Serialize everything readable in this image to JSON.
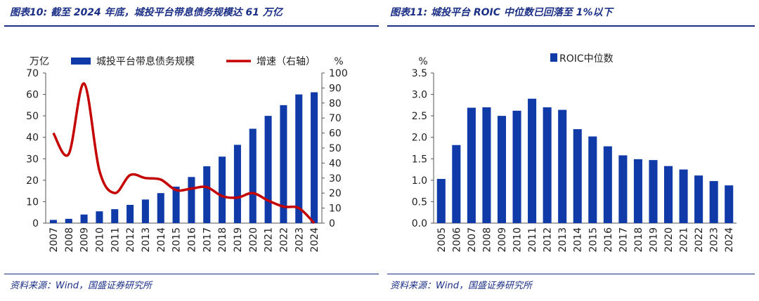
{
  "colors": {
    "bar": "#0f3aa8",
    "line": "#c40000",
    "accent": "#1b2f86"
  },
  "charts": [
    {
      "title": "图表10:  截至 2024 年底，城投平台带息债务规模达 61 万亿",
      "source": "资料来源：Wind，国盛证券研究所",
      "chart_data": {
        "type": "bar+line",
        "categories": [
          "2007",
          "2008",
          "2009",
          "2010",
          "2011",
          "2012",
          "2013",
          "2014",
          "2015",
          "2016",
          "2017",
          "2018",
          "2019",
          "2020",
          "2021",
          "2022",
          "2023",
          "2024"
        ],
        "series": [
          {
            "name": "城投平台带息债务规模",
            "type": "bar",
            "axis": "left",
            "values": [
              1.5,
              2,
              4,
              5.5,
              6.5,
              8.5,
              11,
              14,
              17,
              21.5,
              26.5,
              31,
              36.5,
              44,
              50,
              55,
              60,
              61
            ]
          },
          {
            "name": "增速（右轴）",
            "type": "line",
            "axis": "right",
            "values": [
              60,
              46,
              93,
              35,
              20,
              32,
              30,
              29,
              22,
              23,
              24,
              18,
              17,
              20,
              15,
              11,
              10,
              0
            ]
          }
        ],
        "ylabel_left": "万亿",
        "ylim_left": [
          0,
          70
        ],
        "yticks_left": [
          0,
          10,
          20,
          30,
          40,
          50,
          60,
          70
        ],
        "ylabel_right": "%",
        "ylim_right": [
          0,
          100
        ],
        "yticks_right": [
          0,
          10,
          20,
          30,
          40,
          50,
          60,
          70,
          80,
          90,
          100
        ],
        "legend": "top",
        "grid": false
      }
    },
    {
      "title": "图表11:  城投平台 ROIC 中位数已回落至 1%以下",
      "source": "资料来源：Wind，国盛证券研究所",
      "chart_data": {
        "type": "bar",
        "categories": [
          "2005",
          "2006",
          "2007",
          "2008",
          "2009",
          "2010",
          "2011",
          "2012",
          "2013",
          "2014",
          "2015",
          "2016",
          "2017",
          "2018",
          "2019",
          "2020",
          "2021",
          "2022",
          "2023",
          "2024"
        ],
        "series": [
          {
            "name": "ROIC中位数",
            "values": [
              1.03,
              1.82,
              2.69,
              2.7,
              2.5,
              2.62,
              2.9,
              2.7,
              2.64,
              2.19,
              2.02,
              1.79,
              1.58,
              1.49,
              1.47,
              1.33,
              1.25,
              1.11,
              0.98,
              0.88
            ]
          }
        ],
        "ylabel": "%",
        "ylim": [
          0,
          3.5
        ],
        "yticks": [
          "0.0",
          "0.5",
          "1.0",
          "1.5",
          "2.0",
          "2.5",
          "3.0",
          "3.5"
        ],
        "legend": "top",
        "grid": false
      }
    }
  ]
}
